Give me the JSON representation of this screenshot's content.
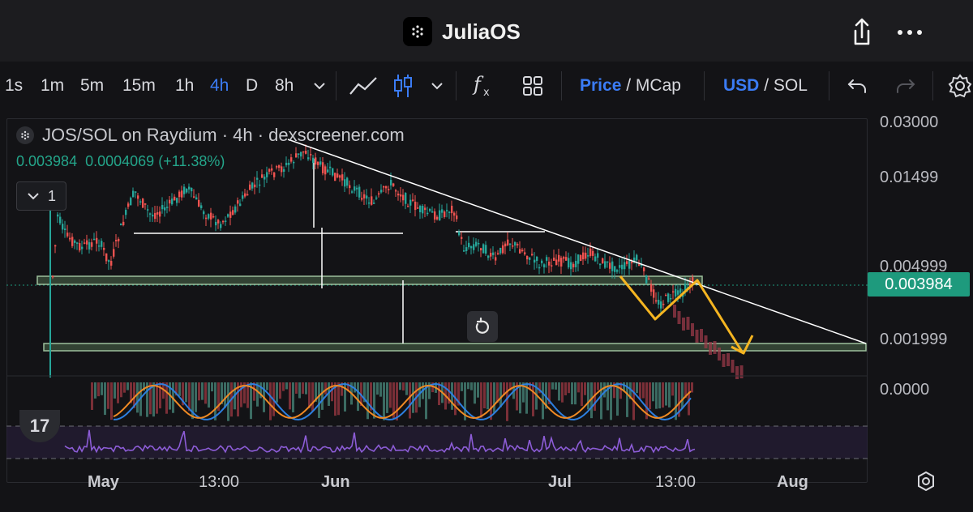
{
  "app": {
    "title": "JuliaOS",
    "logo_icon": "juliaos-logo-icon"
  },
  "header_actions": {
    "share_icon": "share-icon",
    "more_icon": "more-icon"
  },
  "toolbar": {
    "timeframes": [
      "1s",
      "1m",
      "5m",
      "15m",
      "1h",
      "4h",
      "D",
      "8h"
    ],
    "active_timeframe": "4h",
    "price_label": "Price",
    "mcap_label": "MCap",
    "separator": "/",
    "usd_label": "USD",
    "sol_label": "SOL",
    "colors": {
      "accent": "#3b7cf5"
    }
  },
  "legend": {
    "title": "JOS/SOL on Raydium · 4h · dexscreener.com",
    "value_1": "0.003984",
    "value_2": "0.0004069",
    "change": "(+11.38%)",
    "collapse_count": "1"
  },
  "price_axis": {
    "labels": [
      "0.03000",
      "0.01499",
      "0.004999",
      "0.001999",
      "0.0000"
    ],
    "current_price": "0.003984"
  },
  "time_axis": {
    "labels": [
      "May",
      "13:00",
      "Jun",
      "Jul",
      "13:00",
      "Aug"
    ]
  },
  "indicator": {
    "badge": "17"
  },
  "colors": {
    "background": "#131316",
    "candle_up": "#26a69a",
    "candle_down": "#ef5350",
    "trendline": "#ffffff",
    "support_zone": "#6b8f6b",
    "projection": "#f5b521",
    "rsi": "#8c5cd6",
    "macd_fast": "#2d7fe0",
    "macd_slow": "#f08a24"
  }
}
